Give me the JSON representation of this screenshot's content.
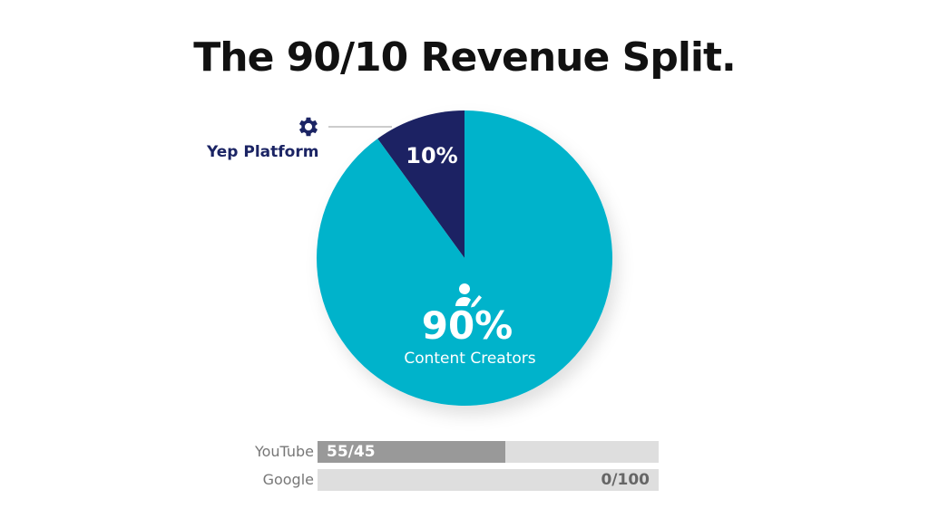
{
  "page": {
    "title": "The 90/10 Revenue Split."
  },
  "chart_data": {
    "type": "pie",
    "title": "The 90/10 Revenue Split.",
    "slices": [
      {
        "label": "Yep Platform",
        "value": 10,
        "value_label": "10%",
        "color": "#1b2464",
        "icon": "gear-icon"
      },
      {
        "label": "Content Creators",
        "value": 90,
        "value_label": "90%",
        "color": "#06b3cb",
        "icon": "creator-edit-icon"
      }
    ]
  },
  "comparison_bars": [
    {
      "label": "YouTube",
      "split_label": "55/45",
      "fill_fraction": 0.55,
      "fill_color": "#999999",
      "value_align": "left"
    },
    {
      "label": "Google",
      "split_label": "0/100",
      "fill_fraction": 0.0,
      "fill_color": "#999999",
      "value_align": "right"
    }
  ],
  "colors": {
    "creators": "#06b3cb",
    "platform": "#1b2464",
    "bar_track": "#dedede",
    "bar_fill": "#999999"
  }
}
